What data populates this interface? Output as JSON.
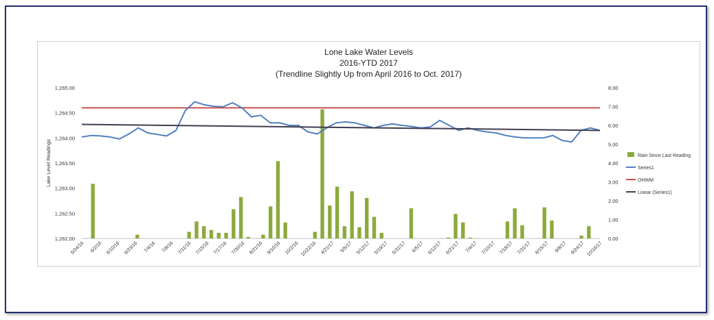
{
  "chart_data": {
    "type": "bar+line",
    "title": "Lone Lake Water Levels",
    "subtitle": "2016-YTD 2017",
    "subtitle2": "(Trendline Slightly Up from April 2016 to Oct. 2017)",
    "ylabel": "Lake Level Readings",
    "y_left_range": [
      1262.0,
      1265.0
    ],
    "y_left_ticks": [
      "1,262.00",
      "1,262.50",
      "1,263.00",
      "1,263.50",
      "1,264.00",
      "1,264.50",
      "1,265.00"
    ],
    "y_right_range": [
      0,
      8
    ],
    "y_right_ticks": [
      "0.00",
      "1.00",
      "2.00",
      "3.00",
      "4.00",
      "5.00",
      "6.00",
      "7.00",
      "8.00"
    ],
    "x_tick_labels": [
      "5/24/16",
      "6/2/16",
      "6/10/16",
      "6/23/16",
      "7/4/16",
      "7/8/16",
      "7/11/16",
      "7/15/16",
      "7/17/16",
      "7/30/16",
      "8/21/16",
      "9/10/16",
      "10/2/16",
      "10/22/16",
      "4/21/17",
      "5/5/17",
      "5/12/17",
      "5/19/17",
      "5/31/17",
      "6/5/17",
      "6/12/17",
      "6/21/17",
      "7/4/17",
      "7/10/17",
      "7/18/17",
      "7/31/17",
      "8/15/17",
      "9/8/17",
      "9/24/17",
      "10/16/17"
    ],
    "series": [
      {
        "name": "Rain Since Last Reading",
        "type": "bar",
        "color": "#8caa3c",
        "axis": "right",
        "values": [
          0,
          2.9,
          0,
          0,
          0,
          0,
          0,
          0.2,
          0,
          0,
          0,
          0,
          0,
          0,
          0.35,
          0.9,
          0.65,
          0.45,
          0.3,
          0.3,
          1.55,
          2.2,
          0.08,
          0,
          0.2,
          1.7,
          4.1,
          0.85,
          0,
          0,
          0,
          0.35,
          6.85,
          1.75,
          2.75,
          0.65,
          2.5,
          0.6,
          2.15,
          1.15,
          0.3,
          0,
          0,
          0,
          1.6,
          0,
          0,
          0,
          0,
          0.05,
          1.3,
          0.85,
          0.05,
          0,
          0,
          0,
          0,
          0.9,
          1.6,
          0.7,
          0,
          0,
          1.65,
          0.95,
          0,
          0,
          0,
          0.15,
          0.65,
          0
        ]
      },
      {
        "name": "Series1",
        "type": "line",
        "color": "#4f7fbf",
        "axis": "left",
        "values": [
          1264.02,
          1264.05,
          1264.04,
          1264.02,
          1263.98,
          1264.08,
          1264.2,
          1264.1,
          1264.07,
          1264.04,
          1264.15,
          1264.55,
          1264.72,
          1264.66,
          1264.63,
          1264.62,
          1264.7,
          1264.6,
          1264.42,
          1264.45,
          1264.3,
          1264.3,
          1264.25,
          1264.25,
          1264.12,
          1264.08,
          1264.2,
          1264.3,
          1264.32,
          1264.3,
          1264.25,
          1264.2,
          1264.25,
          1264.28,
          1264.25,
          1264.23,
          1264.2,
          1264.22,
          1264.35,
          1264.25,
          1264.15,
          1264.2,
          1264.15,
          1264.12,
          1264.1,
          1264.05,
          1264.02,
          1264.0,
          1264.0,
          1264.0,
          1264.05,
          1263.95,
          1263.92,
          1264.15,
          1264.2,
          1264.15
        ]
      },
      {
        "name": "OHWM",
        "type": "line",
        "color": "#c9504a",
        "axis": "left",
        "values": [
          1264.6,
          1264.6
        ]
      },
      {
        "name": "Linear  (Series1)",
        "type": "trendline",
        "color": "#403c4e",
        "axis": "left",
        "values": [
          1264.27,
          1264.15
        ]
      }
    ],
    "legend_position": "right"
  }
}
